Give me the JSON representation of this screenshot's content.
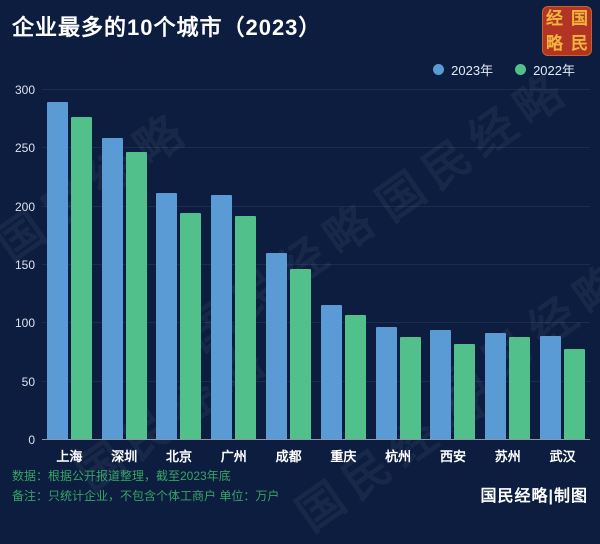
{
  "title": "企业最多的10个城市（2023）",
  "seal_chars": [
    "经",
    "国",
    "略",
    "民"
  ],
  "watermark": "国民经略",
  "colors": {
    "background": "#0c1d40",
    "series_2023": "#5b9bd5",
    "series_2022": "#52c08a",
    "footnote_green": "#36a463",
    "seal_red": "#b23425",
    "seal_gold": "#f0b63c"
  },
  "chart_data": {
    "type": "bar",
    "title": "企业最多的10个城市（2023）",
    "categories": [
      "上海",
      "深圳",
      "北京",
      "广州",
      "成都",
      "重庆",
      "杭州",
      "西安",
      "苏州",
      "武汉"
    ],
    "series": [
      {
        "name": "2023年",
        "color": "#5b9bd5",
        "values": [
          290,
          259,
          212,
          210,
          160,
          116,
          97,
          94,
          92,
          89
        ]
      },
      {
        "name": "2022年",
        "color": "#52c08a",
        "values": [
          277,
          247,
          195,
          192,
          147,
          107,
          88,
          82,
          88,
          78
        ]
      }
    ],
    "ylim": [
      0,
      300
    ],
    "yticks": [
      0,
      50,
      100,
      150,
      200,
      250,
      300
    ],
    "xlabel": "",
    "ylabel": "",
    "grid": "faint-horizontal",
    "legend_position": "top-right",
    "unit": "万户"
  },
  "footnotes": {
    "data_source": "数据：根据公开报道整理，截至2023年底",
    "note": "备注：只统计企业，不包含个体工商户  单位：万户",
    "credit": "国民经略|制图"
  }
}
